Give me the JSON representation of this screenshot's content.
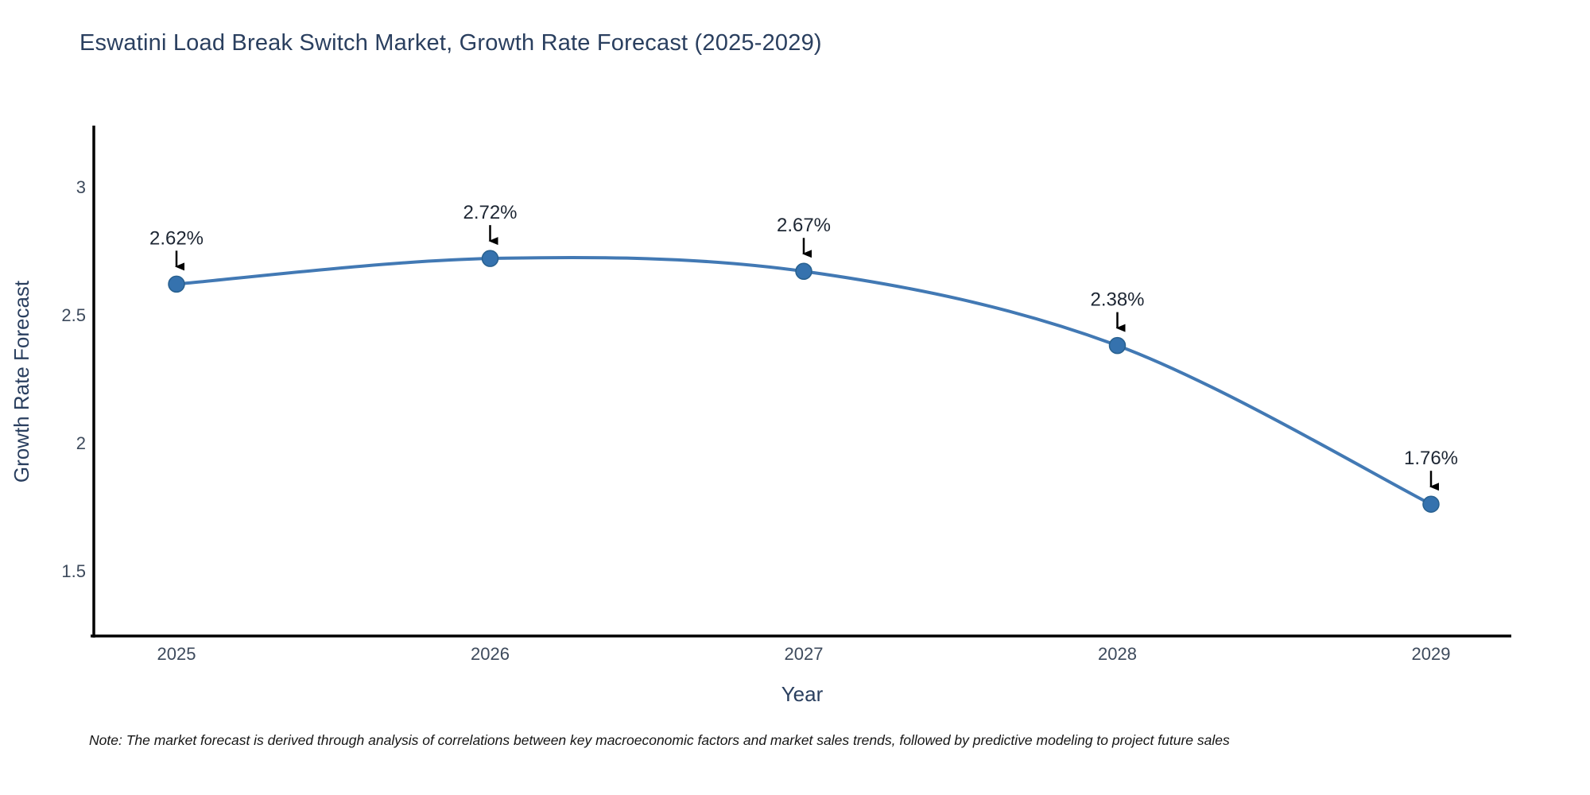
{
  "title": "Eswatini Load Break Switch Market, Growth Rate Forecast (2025-2029)",
  "note": "Note: The market forecast is derived through analysis of correlations between key macroeconomic factors and market sales trends, followed by predictive modeling to project future sales",
  "chart_data": {
    "type": "line",
    "line_shape": "spline",
    "title": "Eswatini Load Break Switch Market, Growth Rate Forecast (2025-2029)",
    "xlabel": "Year",
    "ylabel": "Growth Rate Forecast",
    "x": [
      2025,
      2026,
      2027,
      2028,
      2029
    ],
    "xtick_labels": [
      "2025",
      "2026",
      "2027",
      "2028",
      "2029"
    ],
    "series": [
      {
        "name": "Growth Rate Forecast",
        "values": [
          2.62,
          2.72,
          2.67,
          2.38,
          1.76
        ]
      }
    ],
    "point_labels": [
      "2.62%",
      "2.72%",
      "2.67%",
      "2.38%",
      "1.76%"
    ],
    "yticks": [
      3,
      2.5,
      2,
      1.5
    ],
    "ytick_labels": [
      "3",
      "2.5",
      "2",
      "1.5"
    ],
    "ylim": [
      1.245,
      3.233
    ],
    "xlim": [
      2025,
      2029
    ],
    "grid": false,
    "legend": "none",
    "annotations_style": "value-label-with-down-arrow",
    "colors": {
      "line": "#4279b4",
      "marker_fill": "#3572ae",
      "marker_edge": "#28608f",
      "arrow": "#000000",
      "annotation_text": "#1d2633",
      "axis_line": "#000000",
      "title_text": "#2a3f5f",
      "tick_text": "#3d4a5c",
      "background": "#ffffff"
    }
  }
}
